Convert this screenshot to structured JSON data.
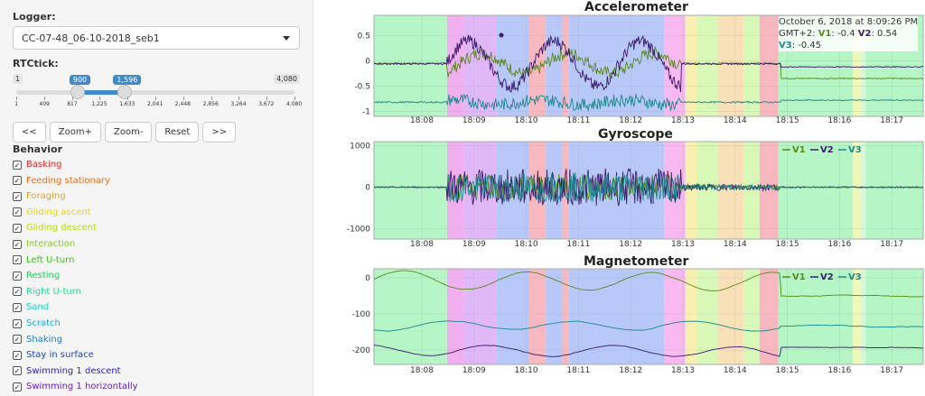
{
  "logger": {
    "label": "Logger:",
    "value": "CC-07-48_06-10-2018_seb1"
  },
  "rtctick": {
    "label": "RTCtick:",
    "min": "1",
    "max": "4,080",
    "low": "900",
    "high": "1,596",
    "low_value": 900,
    "high_value": 1596,
    "scale_min": 1,
    "scale_max": 4080,
    "ticks": [
      "1",
      "409",
      "817",
      "1,225",
      "1,633",
      "2,041",
      "2,448",
      "2,856",
      "3,264",
      "3,672",
      "4,080"
    ]
  },
  "buttons": {
    "back": "<<",
    "zoom_in": "Zoom+",
    "zoom_out": "Zoom-",
    "reset": "Reset",
    "forward": ">>"
  },
  "behavior": {
    "label": "Behavior",
    "items": [
      {
        "label": "Basking",
        "color": "#e8262a"
      },
      {
        "label": "Feeding stationary",
        "color": "#ef6d1a"
      },
      {
        "label": "Foraging",
        "color": "#f0a30a"
      },
      {
        "label": "Gliding ascent",
        "color": "#e6d80f"
      },
      {
        "label": "Gliding descent",
        "color": "#b9dc12"
      },
      {
        "label": "Interaction",
        "color": "#7fd11a"
      },
      {
        "label": "Left U-turn",
        "color": "#37c41a"
      },
      {
        "label": "Resting",
        "color": "#1ed45a"
      },
      {
        "label": "Right U-turn",
        "color": "#1adf8e"
      },
      {
        "label": "Sand",
        "color": "#1ad4c8"
      },
      {
        "label": "Scratch",
        "color": "#1aa8e0"
      },
      {
        "label": "Shaking",
        "color": "#1a7ad4"
      },
      {
        "label": "Stay in surface",
        "color": "#1a43d4"
      },
      {
        "label": "Swimming 1 descent",
        "color": "#2a1ad4"
      },
      {
        "label": "Swimming 1 horizontally",
        "color": "#6a1ad4"
      }
    ]
  },
  "tooltip": {
    "date": "October 6, 2018 at 8:09:26 PM",
    "tz": "GMT+2:",
    "v1_label": "V1",
    "v1": ": -0.4",
    "v2_label": "V2",
    "v2": ": 0.54",
    "v3_label": "V3",
    "v3": ": -0.45"
  },
  "legend": {
    "v1": "V1",
    "v2": "V2",
    "v3": "V3",
    "v1_color": "#5a8a1a",
    "v2_color": "#3c1a6e",
    "v3_color": "#1a8a8a"
  },
  "x_ticks": [
    "18:08",
    "18:09",
    "18:10",
    "18:11",
    "18:12",
    "18:13",
    "18:14",
    "18:15",
    "18:16",
    "18:17"
  ],
  "bands": [
    {
      "from": 0.0,
      "to": 0.133,
      "color": "#b6f5c6"
    },
    {
      "from": 0.133,
      "to": 0.163,
      "color": "#f0b0f0"
    },
    {
      "from": 0.163,
      "to": 0.223,
      "color": "#e0b8f8"
    },
    {
      "from": 0.223,
      "to": 0.283,
      "color": "#b8c8f8"
    },
    {
      "from": 0.283,
      "to": 0.313,
      "color": "#f8b8c0"
    },
    {
      "from": 0.313,
      "to": 0.343,
      "color": "#b8c8f8"
    },
    {
      "from": 0.343,
      "to": 0.355,
      "color": "#f8b8c0"
    },
    {
      "from": 0.355,
      "to": 0.528,
      "color": "#b8c8f8"
    },
    {
      "from": 0.528,
      "to": 0.567,
      "color": "#f8b8f0"
    },
    {
      "from": 0.567,
      "to": 0.588,
      "color": "#f8f0b0"
    },
    {
      "from": 0.588,
      "to": 0.626,
      "color": "#d8f8b8"
    },
    {
      "from": 0.626,
      "to": 0.673,
      "color": "#f8e0b8"
    },
    {
      "from": 0.673,
      "to": 0.702,
      "color": "#d8f8b8"
    },
    {
      "from": 0.702,
      "to": 0.736,
      "color": "#f8b8c0"
    },
    {
      "from": 0.736,
      "to": 0.872,
      "color": "#b6f5c6"
    },
    {
      "from": 0.872,
      "to": 0.886,
      "color": "#f0f8b8"
    },
    {
      "from": 0.886,
      "to": 0.895,
      "color": "#d8f8d8"
    },
    {
      "from": 0.895,
      "to": 1.0,
      "color": "#b6f5c6"
    }
  ],
  "chart_data": [
    {
      "type": "line",
      "title": "Accelerometer",
      "y_ticks": [
        "0.5",
        "0",
        "-0.5",
        "-1"
      ],
      "y_values": [
        0.5,
        0,
        -0.5,
        -1
      ],
      "ylim": [
        -1.1,
        0.9
      ]
    },
    {
      "type": "line",
      "title": "Gyroscope",
      "y_ticks": [
        "1000",
        "0",
        "-1000"
      ],
      "y_values": [
        1000,
        0,
        -1000
      ],
      "ylim": [
        -1250,
        1100
      ]
    },
    {
      "type": "line",
      "title": "Magnetometer",
      "y_ticks": [
        "0",
        "-100",
        "-200"
      ],
      "y_values": [
        0,
        -100,
        -200
      ],
      "ylim": [
        -240,
        25
      ]
    }
  ]
}
